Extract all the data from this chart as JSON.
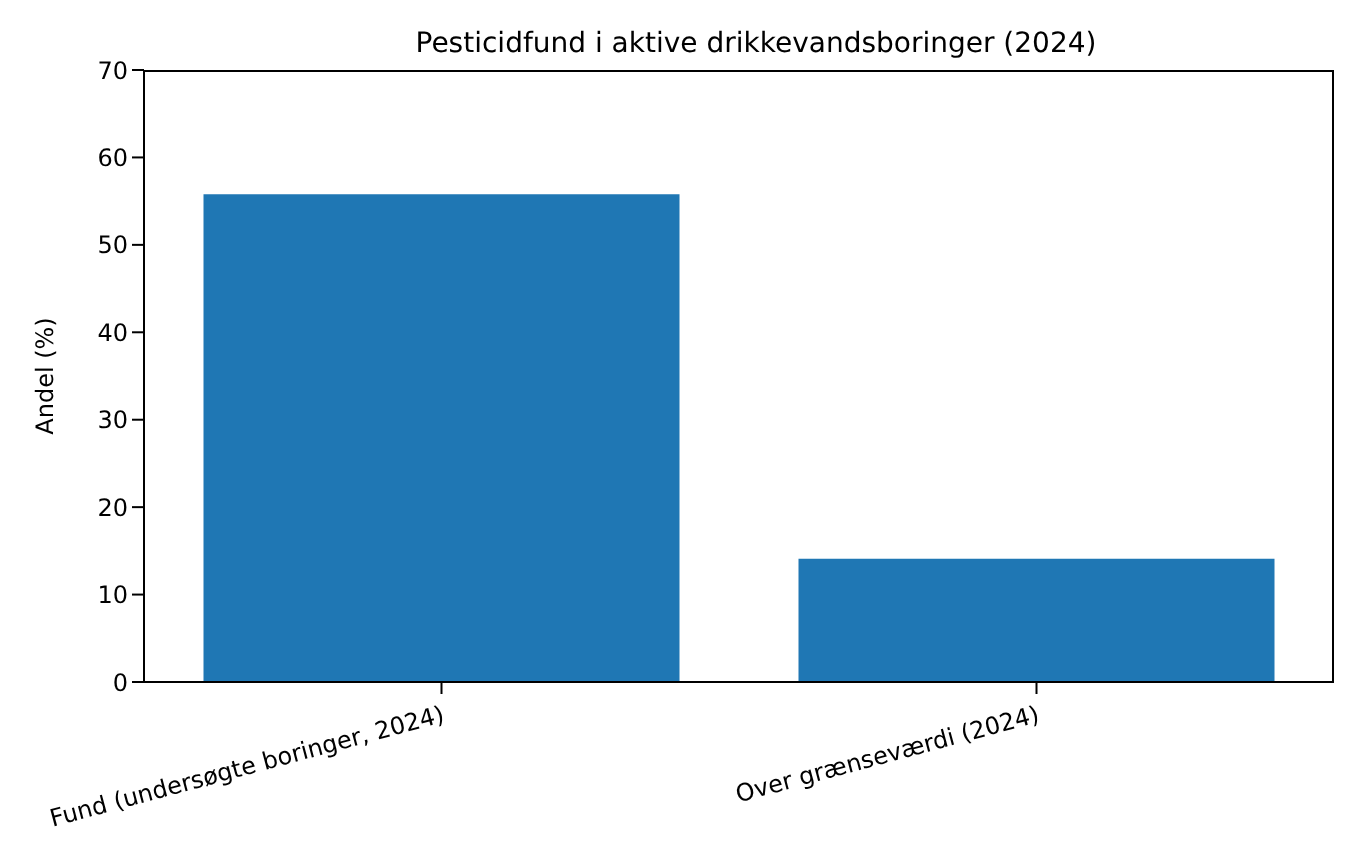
{
  "chart_data": {
    "type": "bar",
    "title": "Pesticidfund i aktive drikkevandsboringer (2024)",
    "ylabel": "Andel (%)",
    "categories": [
      "Fund (undersøgte boringer, 2024)",
      "Over grænseværdi (2024)"
    ],
    "values": [
      55.8,
      14.1
    ],
    "color": "#1f77b4",
    "ylim": [
      0,
      70
    ],
    "yticks": [
      0,
      10,
      20,
      30,
      40,
      50,
      60,
      70
    ],
    "grid": false,
    "legend": false
  }
}
